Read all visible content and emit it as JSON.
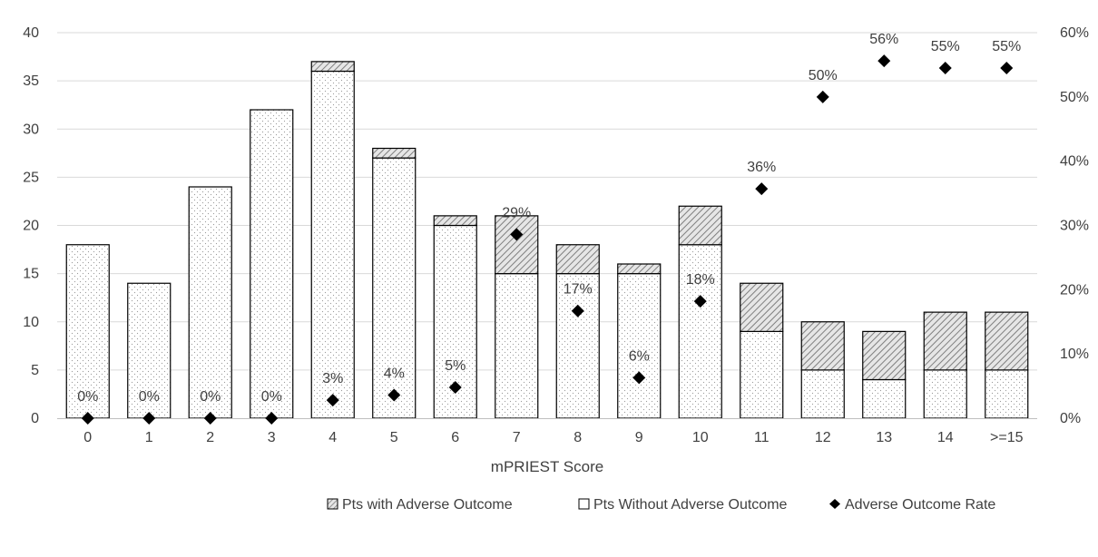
{
  "chart_data": {
    "type": "bar",
    "subtype": "stacked-bar-with-secondary-scatter",
    "xlabel": "mPRIEST Score",
    "categories": [
      "0",
      "1",
      "2",
      "3",
      "4",
      "5",
      "6",
      "7",
      "8",
      "9",
      "10",
      "11",
      "12",
      "13",
      "14",
      ">=15"
    ],
    "y_left": {
      "ylim": [
        0,
        40
      ],
      "ticks": [
        0,
        5,
        10,
        15,
        20,
        25,
        30,
        35,
        40
      ]
    },
    "y_right": {
      "ylim": [
        0,
        60
      ],
      "ticks": [
        "0%",
        "10%",
        "20%",
        "30%",
        "40%",
        "50%",
        "60%"
      ]
    },
    "grid": "horizontal",
    "legend_position": "bottom",
    "series": [
      {
        "name": "Pts Without Adverse Outcome",
        "kind": "bar-stack-bottom",
        "fill": "dotted",
        "axis": "left",
        "values": [
          18,
          14,
          24,
          32,
          36,
          27,
          20,
          15,
          15,
          15,
          18,
          9,
          5,
          4,
          5,
          5
        ]
      },
      {
        "name": "Pts with Adverse Outcome",
        "kind": "bar-stack-top",
        "fill": "hatched",
        "axis": "left",
        "values": [
          0,
          0,
          0,
          0,
          1,
          1,
          1,
          6,
          3,
          1,
          4,
          5,
          5,
          5,
          6,
          6
        ]
      },
      {
        "name": "Adverse Outcome Rate",
        "kind": "scatter-diamond",
        "axis": "right",
        "unit": "%",
        "values": [
          0,
          0,
          0,
          0,
          2.8,
          3.6,
          4.8,
          28.6,
          16.7,
          6.3,
          18.2,
          35.7,
          50,
          55.6,
          54.5,
          54.5
        ],
        "labels": [
          "0%",
          "0%",
          "0%",
          "0%",
          "3%",
          "4%",
          "5%",
          "29%",
          "17%",
          "6%",
          "18%",
          "36%",
          "50%",
          "56%",
          "55%",
          "55%"
        ]
      }
    ],
    "legend": [
      {
        "label": "Pts with Adverse Outcome",
        "symbol": "hatched-square"
      },
      {
        "label": "Pts Without Adverse Outcome",
        "symbol": "empty-square"
      },
      {
        "label": "Adverse Outcome Rate",
        "symbol": "diamond"
      }
    ],
    "colors": {
      "axis": "#bfbfbf",
      "grid": "#d9d9d9",
      "bar_border": "#000000",
      "text": "#404040",
      "marker": "#000000"
    }
  }
}
